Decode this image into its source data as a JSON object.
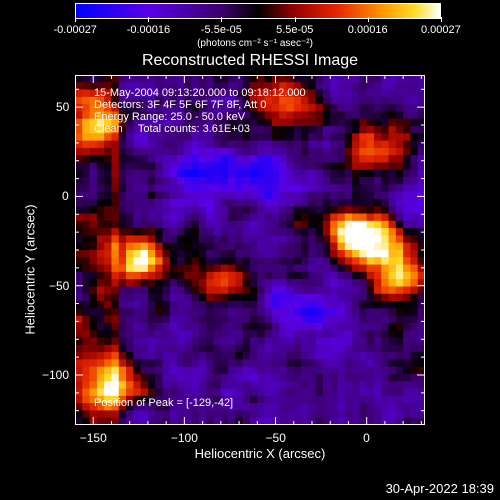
{
  "colorbar": {
    "ticks": [
      "-0.00027",
      "-0.00016",
      "-5.5e-05",
      "5.5e-05",
      "0.00016",
      "0.00027"
    ],
    "unit": "(photons cm⁻² s⁻¹ asec⁻²)"
  },
  "chart_data": {
    "type": "heatmap",
    "title": "Reconstructed RHESSI Image",
    "xlabel": "Heliocentric X (arcsec)",
    "ylabel": "Heliocentric Y (arcsec)",
    "xlim": [
      -160,
      32
    ],
    "ylim": [
      -128,
      68
    ],
    "zlim": [
      -0.00027,
      0.00027
    ],
    "x_ticks": [
      -150,
      -100,
      -50,
      0
    ],
    "x_tick_labels": [
      "−150",
      "−100",
      "−50",
      "0"
    ],
    "y_ticks": [
      50,
      0,
      -50,
      -100
    ],
    "y_tick_labels": [
      "50",
      "0",
      "−50",
      "−100"
    ],
    "peak": [
      -129,
      -42
    ],
    "bright_regions": [
      {
        "x": -150,
        "y": 40,
        "level": 0.75
      },
      {
        "x": -140,
        "y": -105,
        "level": 1.0
      },
      {
        "x": -125,
        "y": -35,
        "level": 0.95
      },
      {
        "x": -45,
        "y": 52,
        "level": 0.7
      },
      {
        "x": -10,
        "y": -20,
        "level": 0.8
      },
      {
        "x": 5,
        "y": -25,
        "level": 0.85
      },
      {
        "x": 18,
        "y": -45,
        "level": 0.9
      },
      {
        "x": 5,
        "y": 28,
        "level": 0.8
      },
      {
        "x": -80,
        "y": -48,
        "level": 0.6
      }
    ],
    "dim_regions": [
      {
        "x": -30,
        "y": -65
      },
      {
        "x": -90,
        "y": 15
      },
      {
        "x": -60,
        "y": 10
      }
    ]
  },
  "annotations": {
    "line1": "15-May-2004 09:13:20.000 to 09:18:12.000",
    "line2": "Detectors: 3F 4F 5F 6F 7F 8F, Att 0",
    "line3": "Energy Range: 25.0 - 50.0 keV",
    "line4": "Clean     Total counts: 3.61E+03",
    "peak": "Position of Peak = [-129,-42]"
  },
  "footer": "30-Apr-2022 18:39"
}
